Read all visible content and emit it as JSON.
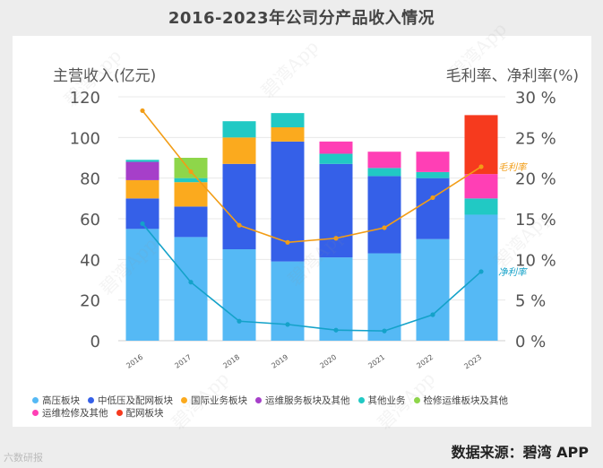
{
  "title": "2016-2023年公司分产品收入情况",
  "source": "数据来源：碧湾 APP",
  "watermark": "碧湾App",
  "corner_badge": "六数研报",
  "colors": {
    "high_voltage": "#55b9f5",
    "mid_low": "#3560e8",
    "international": "#fbaa1e",
    "ops_service": "#a63fc9",
    "other": "#21c9c4",
    "maintenance_ops": "#8ed64a",
    "ops_maint_other": "#ff3fb5",
    "distribution": "#f63a1e",
    "gross_margin_line": "#f29d16",
    "net_margin_line": "#14a2c9",
    "axis_text": "#555555",
    "grid": "#e8e8e8"
  },
  "chart_data": {
    "type": "bar",
    "title": "2016-2023年公司分产品收入情况",
    "ylabel": "主营收入(亿元)",
    "y2label": "毛利率、净利率(%)",
    "ylim": [
      0,
      120
    ],
    "yticks": [
      0,
      20,
      40,
      60,
      80,
      100,
      120
    ],
    "y2lim": [
      0,
      30
    ],
    "y2ticks": [
      "0 %",
      "5 %",
      "10 %",
      "15 %",
      "20 %",
      "25 %",
      "30 %"
    ],
    "categories": [
      "2016",
      "2017",
      "2018",
      "2019",
      "2020",
      "2021",
      "2022",
      "2Q23"
    ],
    "series": [
      {
        "key": "high_voltage",
        "name": "高压板块",
        "values": [
          55,
          51,
          45,
          39,
          41,
          43,
          50,
          62
        ]
      },
      {
        "key": "mid_low",
        "name": "中低压及配网板块",
        "values": [
          15,
          15,
          42,
          59,
          46,
          38,
          30,
          0
        ]
      },
      {
        "key": "international",
        "name": "国际业务板块",
        "values": [
          9,
          12,
          13,
          7,
          0,
          0,
          0,
          0
        ]
      },
      {
        "key": "ops_service",
        "name": "运维服务板块及其他",
        "values": [
          9,
          0,
          0,
          0,
          0,
          0,
          0,
          0
        ]
      },
      {
        "key": "other",
        "name": "其他业务",
        "values": [
          1,
          2,
          8,
          7,
          5,
          4,
          3,
          8
        ]
      },
      {
        "key": "maintenance_ops",
        "name": "检修运维板块及其他",
        "values": [
          0,
          10,
          0,
          0,
          0,
          0,
          0,
          0
        ]
      },
      {
        "key": "ops_maint_other",
        "name": "运维检修及其他",
        "values": [
          0,
          0,
          0,
          0,
          6,
          8,
          10,
          12
        ]
      },
      {
        "key": "distribution",
        "name": "配网板块",
        "values": [
          0,
          0,
          0,
          0,
          0,
          0,
          0,
          29
        ]
      }
    ],
    "lines": [
      {
        "key": "gross_margin_line",
        "name": "毛利率",
        "values": [
          28.3,
          20.8,
          14.2,
          12.1,
          12.6,
          13.9,
          17.6,
          21.4
        ]
      },
      {
        "key": "net_margin_line",
        "name": "净利率",
        "values": [
          14.4,
          7.2,
          2.4,
          2.0,
          1.3,
          1.2,
          3.2,
          8.5
        ]
      }
    ]
  }
}
